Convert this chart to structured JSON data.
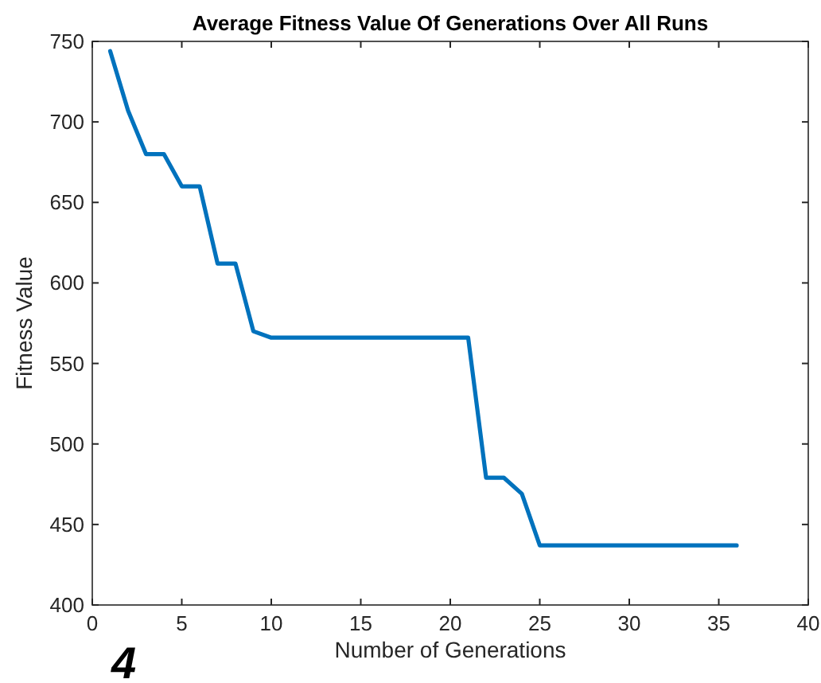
{
  "chart_data": {
    "type": "line",
    "title": "Average Fitness Value Of Generations Over All Runs",
    "xlabel": "Number of Generations",
    "ylabel": "Fitness Value",
    "x": [
      1,
      2,
      3,
      4,
      5,
      6,
      7,
      8,
      9,
      10,
      11,
      12,
      13,
      14,
      15,
      16,
      17,
      18,
      19,
      20,
      21,
      22,
      23,
      24,
      25,
      26,
      27,
      28,
      29,
      30,
      31,
      32,
      33,
      34,
      35,
      36
    ],
    "series": [
      {
        "color": "#0072bd",
        "values": [
          744,
          707,
          680,
          680,
          660,
          660,
          612,
          612,
          570,
          566,
          566,
          566,
          566,
          566,
          566,
          566,
          566,
          566,
          566,
          566,
          566,
          479,
          479,
          469,
          437,
          437,
          437,
          437,
          437,
          437,
          437,
          437,
          437,
          437,
          437,
          437
        ]
      }
    ],
    "xlim": [
      0,
      40
    ],
    "xticks": [
      0,
      5,
      10,
      15,
      20,
      25,
      30,
      35,
      40
    ],
    "ylim": [
      400,
      750
    ],
    "yticks": [
      400,
      450,
      500,
      550,
      600,
      650,
      700,
      750
    ],
    "grid": false,
    "marker": "none",
    "line_style": "solid",
    "annotations": [
      "4"
    ]
  }
}
